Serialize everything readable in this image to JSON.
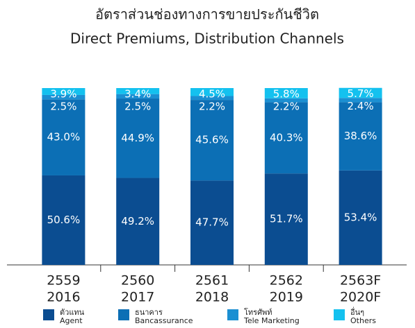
{
  "chart_data": {
    "type": "stacked_bar",
    "title": [
      "อัตราส่วนช่องทางการขายประกันชีวิต",
      "Direct Premiums, Distribution Channels"
    ],
    "categories": [
      [
        "2559",
        "2016"
      ],
      [
        "2560",
        "2017"
      ],
      [
        "2561",
        "2018"
      ],
      [
        "2562",
        "2019"
      ],
      [
        "2563F",
        "2020F"
      ]
    ],
    "ylim": [
      0,
      100
    ],
    "series": [
      {
        "name": [
          "ตัวแทน",
          "Agent"
        ],
        "color": "#0b4d91",
        "values": [
          50.6,
          49.2,
          47.7,
          51.7,
          53.4
        ],
        "value_labels": [
          "50.6%",
          "49.2%",
          "47.7%",
          "51.7%",
          "53.4%"
        ]
      },
      {
        "name": [
          "ธนาคาร",
          "Bancassurance"
        ],
        "color": "#0c6fb5",
        "values": [
          43.0,
          44.9,
          45.6,
          40.3,
          38.6
        ],
        "value_labels": [
          "43.0%",
          "44.9%",
          "45.6%",
          "40.3%",
          "38.6%"
        ]
      },
      {
        "name": [
          "โทรศัพท์",
          "Tele Marketing"
        ],
        "color": "#1b8fd2",
        "values": [
          2.5,
          2.5,
          2.2,
          2.2,
          2.4
        ],
        "value_labels": [
          "2.5%",
          "2.5%",
          "2.2%",
          "2.2%",
          "2.4%"
        ]
      },
      {
        "name": [
          "อื่นๆ",
          "Others"
        ],
        "color": "#14c1ef",
        "values": [
          3.9,
          3.4,
          4.5,
          5.8,
          5.7
        ],
        "value_labels": [
          "3.9%",
          "3.4%",
          "4.5%",
          "5.8%",
          "5.7%"
        ]
      }
    ]
  }
}
